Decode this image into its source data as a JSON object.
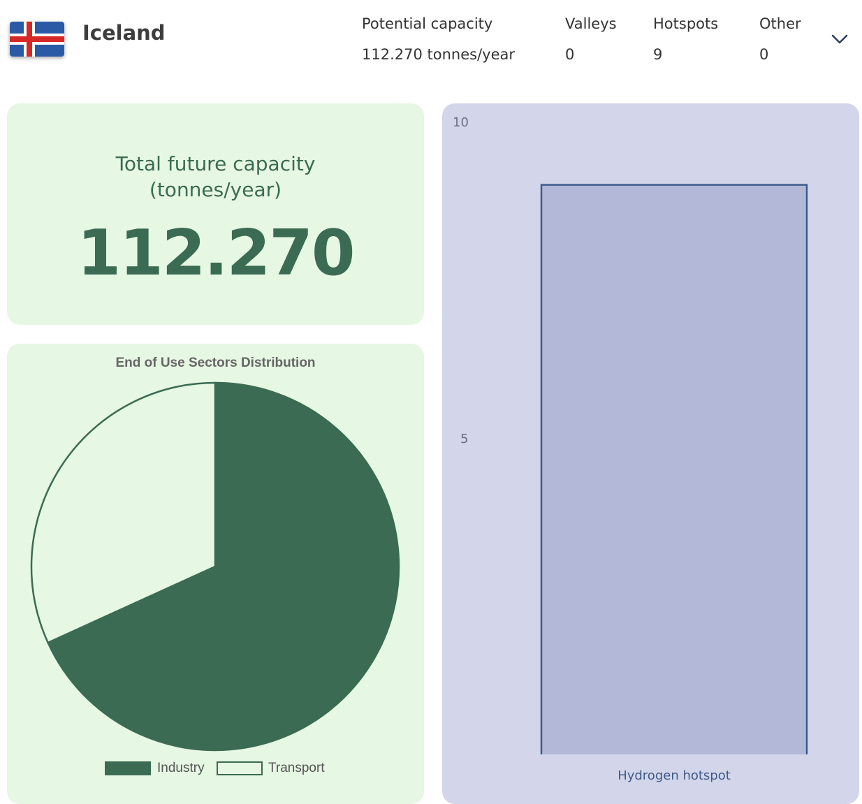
{
  "header": {
    "country": "Iceland",
    "flag_icon": "iceland-flag-icon",
    "stats": [
      {
        "label": "Potential capacity",
        "value": "112.270 tonnes/year"
      },
      {
        "label": "Valleys",
        "value": "0"
      },
      {
        "label": "Hotspots",
        "value": "9"
      },
      {
        "label": "Other",
        "value": "0"
      }
    ],
    "expand_icon": "chevron-down-icon"
  },
  "total_card": {
    "title": "Total future capacity\n(tonnes/year)",
    "value": "112.270"
  },
  "colors": {
    "card_green": "#e6f7e3",
    "dark_green": "#3b6b53",
    "bar_bg": "#d3d6ea",
    "bar_fill": "#b4b8d8",
    "bar_stroke": "#3e5a8a"
  },
  "chart_data": [
    {
      "type": "pie",
      "title": "End of Use Sectors Distribution",
      "categories": [
        "Industry",
        "Transport"
      ],
      "values": [
        68.2,
        31.8
      ],
      "colors": [
        "#3b6b53",
        "#e6f7e3"
      ],
      "legend_position": "bottom"
    },
    {
      "type": "bar",
      "categories": [
        "Hydrogen hotspot"
      ],
      "values": [
        9
      ],
      "ylim": [
        0,
        10
      ],
      "yticks": [
        "10",
        "5"
      ],
      "grid": false
    }
  ]
}
